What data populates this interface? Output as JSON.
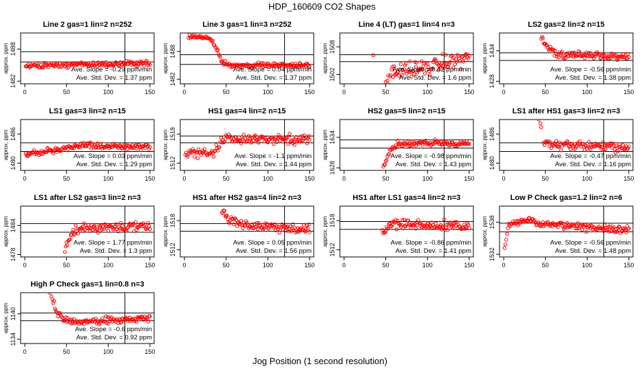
{
  "title": "HDP_160609  CO2 Shapes",
  "xlabel": "Jog Position (1 second resolution)",
  "ylabel": "approx. ppm",
  "point_color": "#ff0000",
  "chart_data": [
    {
      "type": "scatter",
      "title": "Line 2 gas=1 lin=2 n=252",
      "ylim": [
        1481.5,
        1491
      ],
      "yticks": [
        1482,
        1488
      ],
      "xlim": [
        -5,
        155
      ],
      "xticks": [
        0,
        50,
        100,
        150
      ],
      "hlines": [
        1487.5,
        1485.6
      ],
      "vline": 120,
      "x_start": 1,
      "x_end": 150,
      "profile": [
        [
          1,
          1484.8
        ],
        [
          60,
          1485.1
        ],
        [
          150,
          1485.3
        ]
      ],
      "noise": 0.25,
      "slope_label": "Ave. Slope = -0.29 ppm/min",
      "std_label": "Ave. Std. Dev. = 1.37 ppm"
    },
    {
      "type": "scatter",
      "title": "Line 3 gas=1 lin=3 n=252",
      "ylim": [
        1481,
        1492
      ],
      "yticks": [
        1482,
        1488
      ],
      "xlim": [
        -5,
        155
      ],
      "xticks": [
        0,
        50,
        100,
        150
      ],
      "hlines": [
        1487.3,
        1485.2
      ],
      "vline": 120,
      "x_start": 5,
      "x_end": 150,
      "profile": [
        [
          5,
          1491.2
        ],
        [
          30,
          1491
        ],
        [
          38,
          1489
        ],
        [
          45,
          1486
        ],
        [
          55,
          1485
        ],
        [
          150,
          1485
        ]
      ],
      "noise": 0.25,
      "slope_label": "Ave. Slope = 0.04 ppm/min",
      "std_label": "Ave. Std. Dev. = 1.37 ppm"
    },
    {
      "type": "scatter",
      "title": "Line 4 (LT) gas=1 lin=4 n=3",
      "ylim": [
        1500,
        1511
      ],
      "yticks": [
        1502,
        1508
      ],
      "xlim": [
        -5,
        155
      ],
      "xticks": [
        0,
        50,
        100,
        150
      ],
      "hlines": [
        1506.3,
        1504.8
      ],
      "vline": 120,
      "x_start": 50,
      "x_end": 150,
      "profile": [
        [
          50,
          1500.5
        ],
        [
          60,
          1502.5
        ],
        [
          100,
          1503.5
        ],
        [
          150,
          1505.8
        ]
      ],
      "noise": 0.8,
      "extra_points": [
        [
          35,
          1506.2
        ]
      ],
      "slope_label": "Ave. Slope = 0.42 ppm/min",
      "std_label": "Ave. Std. Dev. = 1.6 ppm"
    },
    {
      "type": "scatter",
      "title": "LS2 gas=2 lin=2 n=15",
      "ylim": [
        1427.5,
        1437.5
      ],
      "yticks": [
        1428,
        1434
      ],
      "xlim": [
        -5,
        155
      ],
      "xticks": [
        0,
        50,
        100,
        150
      ],
      "hlines": [
        1433.6,
        1432.1
      ],
      "vline": 120,
      "x_start": 45,
      "x_end": 150,
      "profile": [
        [
          45,
          1436.5
        ],
        [
          55,
          1434
        ],
        [
          70,
          1433.3
        ],
        [
          150,
          1432.8
        ]
      ],
      "noise": 0.35,
      "slope_label": "Ave. Slope = -0.56 ppm/min",
      "std_label": "Ave. Std. Dev. = 1.38 ppm"
    },
    {
      "type": "scatter",
      "title": "LS1 gas=3 lin=2 n=15",
      "ylim": [
        1478.5,
        1489
      ],
      "yticks": [
        1480,
        1486
      ],
      "xlim": [
        -5,
        155
      ],
      "xticks": [
        0,
        50,
        100,
        150
      ],
      "hlines": [
        1484.2,
        1482.4
      ],
      "vline": 120,
      "x_start": 1,
      "x_end": 150,
      "profile": [
        [
          1,
          1481.8
        ],
        [
          20,
          1482.2
        ],
        [
          40,
          1482.8
        ],
        [
          60,
          1483.6
        ],
        [
          150,
          1483.4
        ]
      ],
      "noise": 0.3,
      "slope_label": "Ave. Slope = 0.03 ppm/min",
      "std_label": "Ave. Std. Dev. = 1.29 ppm"
    },
    {
      "type": "scatter",
      "title": "HS1 gas=4 lin=2 n=15",
      "ylim": [
        1510.5,
        1521
      ],
      "yticks": [
        1512,
        1518
      ],
      "xlim": [
        -5,
        155
      ],
      "xticks": [
        0,
        50,
        100,
        150
      ],
      "hlines": [
        1517.6,
        1516.2
      ],
      "vline": 120,
      "x_start": 1,
      "x_end": 150,
      "profile": [
        [
          1,
          1514
        ],
        [
          35,
          1514.2
        ],
        [
          45,
          1517
        ],
        [
          150,
          1517
        ]
      ],
      "noise": 0.45,
      "slope_label": "Ave. Slope = -1.1 ppm/min",
      "std_label": "Ave. Std. Dev. = 1.44 ppm"
    },
    {
      "type": "scatter",
      "title": "HS2 gas=5 lin=2 n=15",
      "ylim": [
        1627.5,
        1637.5
      ],
      "yticks": [
        1628,
        1634
      ],
      "xlim": [
        -5,
        155
      ],
      "xticks": [
        0,
        50,
        100,
        150
      ],
      "hlines": [
        1633.5,
        1631.9
      ],
      "vline": 120,
      "x_start": 47,
      "x_end": 150,
      "profile": [
        [
          47,
          1628
        ],
        [
          55,
          1631.3
        ],
        [
          65,
          1632.8
        ],
        [
          150,
          1632.8
        ]
      ],
      "noise": 0.3,
      "slope_label": "Ave. Slope = -0.98 ppm/min",
      "std_label": "Ave. Std. Dev. = 1.43 ppm"
    },
    {
      "type": "scatter",
      "title": "LS1 after HS1 gas=3 lin=2 n=3",
      "ylim": [
        1478.5,
        1489
      ],
      "yticks": [
        1480,
        1486
      ],
      "xlim": [
        -5,
        155
      ],
      "xticks": [
        0,
        50,
        100,
        150
      ],
      "hlines": [
        1484.2,
        1482.4
      ],
      "vline": 120,
      "x_start": 48,
      "x_end": 150,
      "profile": [
        [
          48,
          1484
        ],
        [
          150,
          1483.2
        ]
      ],
      "noise": 0.45,
      "extra_points": [
        [
          42,
          1489
        ],
        [
          44,
          1488.2
        ],
        [
          45,
          1487.4
        ]
      ],
      "slope_label": "Ave. Slope = -0.47 ppm/min",
      "std_label": "Ave. Std. Dev. = 1.16 ppm"
    },
    {
      "type": "scatter",
      "title": "LS1 after LS2 gas=3 lin=2 n=3",
      "ylim": [
        1477.5,
        1488
      ],
      "yticks": [
        1478,
        1484
      ],
      "xlim": [
        -5,
        155
      ],
      "xticks": [
        0,
        50,
        100,
        150
      ],
      "hlines": [
        1484.4,
        1482.6
      ],
      "vline": 120,
      "x_start": 48,
      "x_end": 150,
      "profile": [
        [
          48,
          1479
        ],
        [
          58,
          1482.5
        ],
        [
          70,
          1483.3
        ],
        [
          150,
          1483.8
        ]
      ],
      "noise": 0.5,
      "slope_label": "Ave. Slope = 1.77 ppm/min",
      "std_label": "Ave. Std. Dev. = 1.3 ppm"
    },
    {
      "type": "scatter",
      "title": "HS1 after HS2 gas=4 lin=2 n=3",
      "ylim": [
        1510.5,
        1521
      ],
      "yticks": [
        1512,
        1518
      ],
      "xlim": [
        -5,
        155
      ],
      "xticks": [
        0,
        50,
        100,
        150
      ],
      "hlines": [
        1517.4,
        1515.8
      ],
      "vline": 120,
      "x_start": 45,
      "x_end": 150,
      "profile": [
        [
          45,
          1520.5
        ],
        [
          52,
          1518.2
        ],
        [
          80,
          1517
        ],
        [
          150,
          1516.2
        ]
      ],
      "noise": 0.5,
      "slope_label": "Ave. Slope = 0.05 ppm/min",
      "std_label": "Ave. Std. Dev. = 1.56 ppm"
    },
    {
      "type": "scatter",
      "title": "HS1 after LS1 gas=4 lin=2 n=3",
      "ylim": [
        1510.5,
        1521
      ],
      "yticks": [
        1512,
        1518
      ],
      "xlim": [
        -5,
        155
      ],
      "xticks": [
        0,
        50,
        100,
        150
      ],
      "hlines": [
        1517.8,
        1516.2
      ],
      "vline": 120,
      "x_start": 46,
      "x_end": 150,
      "profile": [
        [
          46,
          1515.5
        ],
        [
          55,
          1517.2
        ],
        [
          150,
          1517
        ]
      ],
      "noise": 0.45,
      "slope_label": "Ave. Slope = -0.86 ppm/min",
      "std_label": "Ave. Std. Dev. = 1.41 ppm"
    },
    {
      "type": "scatter",
      "title": "Low P Check gas=1.2 lin=2 n=6",
      "ylim": [
        1531.5,
        1541
      ],
      "yticks": [
        1532,
        1538
      ],
      "xlim": [
        -5,
        155
      ],
      "xticks": [
        0,
        50,
        100,
        150
      ],
      "hlines": [
        1537.8,
        1536.2
      ],
      "vline": 120,
      "x_start": 1,
      "x_end": 150,
      "profile": [
        [
          1,
          1533
        ],
        [
          6,
          1537.5
        ],
        [
          30,
          1538.6
        ],
        [
          45,
          1537.6
        ],
        [
          150,
          1536.6
        ]
      ],
      "noise": 0.35,
      "slope_label": "Ave. Slope = -0.56 ppm/min",
      "std_label": "Ave. Std. Dev. = 1.48 ppm"
    },
    {
      "type": "scatter",
      "title": "High P Check gas=1 lin=0.8 n=3",
      "ylim": [
        1133,
        1145
      ],
      "yticks": [
        1134,
        1140
      ],
      "xlim": [
        -5,
        155
      ],
      "xticks": [
        0,
        50,
        100,
        150
      ],
      "hlines": [
        1140.2,
        1138.4
      ],
      "vline": 120,
      "x_start": 30,
      "x_end": 150,
      "profile": [
        [
          30,
          1145
        ],
        [
          35,
          1142.5
        ],
        [
          40,
          1140
        ],
        [
          50,
          1138.3
        ],
        [
          70,
          1138
        ],
        [
          150,
          1139.2
        ]
      ],
      "noise": 0.4,
      "slope_label": "Ave. Slope = -0.6 ppm/min",
      "std_label": "Ave. Std. Dev. = 0.92 ppm"
    }
  ]
}
